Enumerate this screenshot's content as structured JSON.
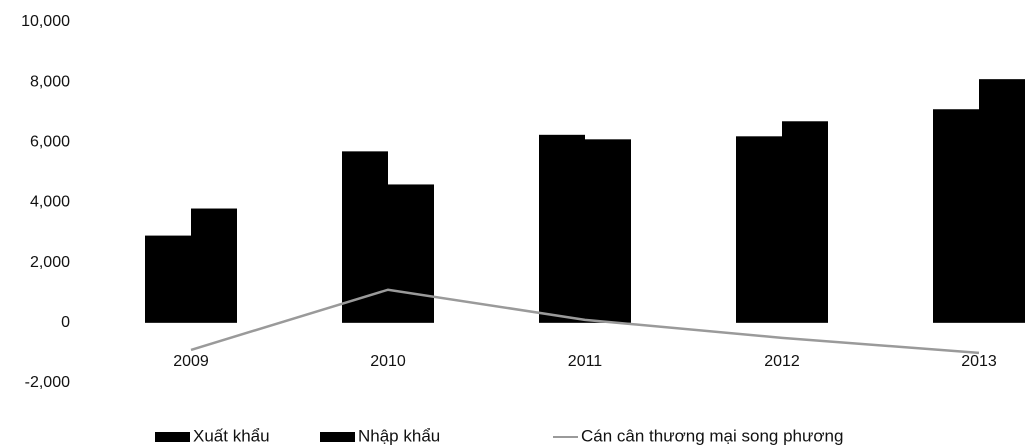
{
  "chart_data": {
    "type": "bar",
    "categories": [
      "2009",
      "2010",
      "2011",
      "2012",
      "2013"
    ],
    "series": [
      {
        "name": "Xuất khẩu",
        "color": "#000000",
        "values": [
          2900,
          5700,
          6250,
          6200,
          7100
        ]
      },
      {
        "name": "Nhập khẩu",
        "color": "#000000",
        "values": [
          3800,
          4600,
          6100,
          6700,
          8100
        ]
      },
      {
        "name": "Cán cân thương mại song phương",
        "type": "line",
        "color": "#9a9a9a",
        "values": [
          -900,
          1100,
          100,
          -500,
          -1000
        ]
      }
    ],
    "ylim": [
      -2000,
      10000
    ],
    "yticks": [
      {
        "value": -2000,
        "label": "-2,000"
      },
      0,
      {
        "value": 2000,
        "label": "2,000"
      },
      {
        "value": 4000,
        "label": "4,000"
      },
      {
        "value": 6000,
        "label": "6,000"
      },
      {
        "value": 8000,
        "label": "8,000"
      },
      {
        "value": 10000,
        "label": "10,000"
      }
    ],
    "grid": false,
    "legend": "bottom"
  }
}
